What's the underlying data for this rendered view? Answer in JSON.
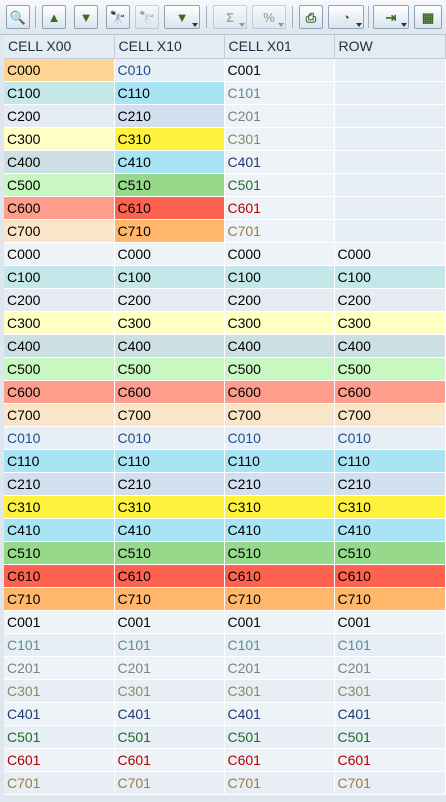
{
  "toolbar": {
    "buttons": [
      {
        "icon": "zoom-details-icon",
        "glyph": "🔍"
      },
      {
        "icon": "sort-ascending-icon",
        "glyph": "▲"
      },
      {
        "icon": "sort-descending-icon",
        "glyph": "▼"
      },
      {
        "icon": "find-icon",
        "glyph": "🔭"
      },
      {
        "icon": "find-next-icon",
        "glyph": "🔭"
      },
      {
        "icon": "filter-icon",
        "glyph": "▼"
      },
      {
        "icon": "sum-icon",
        "glyph": "Σ"
      },
      {
        "icon": "subtotal-icon",
        "glyph": "%"
      },
      {
        "icon": "print-icon",
        "glyph": "⎙"
      },
      {
        "icon": "layout-icon",
        "glyph": "◔"
      },
      {
        "icon": "export-icon",
        "glyph": "⇥"
      },
      {
        "icon": "grid-icon",
        "glyph": "▦"
      }
    ]
  },
  "table": {
    "headers": [
      "CELL X00",
      "CELL X10",
      "CELL X01",
      "ROW"
    ],
    "rows": [
      {
        "cells": [
          {
            "text": "C000",
            "bg": "#fcd592",
            "color": "#000000"
          },
          {
            "text": "C010",
            "bg": "#e8eef5",
            "color": "#1d4f91"
          },
          {
            "text": "C001",
            "bg": "#eef3f8",
            "color": "#000000"
          },
          {
            "text": "",
            "bg": "#e8eef5",
            "color": "#000000"
          }
        ]
      },
      {
        "cells": [
          {
            "text": "C100",
            "bg": "#c4e8ea",
            "color": "#000000"
          },
          {
            "text": "C110",
            "bg": "#a8e4f3",
            "color": "#000000"
          },
          {
            "text": "C101",
            "bg": "#eef3f8",
            "color": "#5a8a9a"
          },
          {
            "text": "",
            "bg": "#e8eef5",
            "color": "#000000"
          }
        ]
      },
      {
        "cells": [
          {
            "text": "C200",
            "bg": "#e4ebf3",
            "color": "#000000"
          },
          {
            "text": "C210",
            "bg": "#d2dfee",
            "color": "#000000"
          },
          {
            "text": "C201",
            "bg": "#eef3f8",
            "color": "#808080"
          },
          {
            "text": "",
            "bg": "#e8eef5",
            "color": "#000000"
          }
        ]
      },
      {
        "cells": [
          {
            "text": "C300",
            "bg": "#ffffc4",
            "color": "#000000"
          },
          {
            "text": "C310",
            "bg": "#fff23d",
            "color": "#000000"
          },
          {
            "text": "C301",
            "bg": "#eef3f8",
            "color": "#8a8a5a"
          },
          {
            "text": "",
            "bg": "#e8eef5",
            "color": "#000000"
          }
        ]
      },
      {
        "cells": [
          {
            "text": "C400",
            "bg": "#cce0e4",
            "color": "#000000"
          },
          {
            "text": "C410",
            "bg": "#a8e4f3",
            "color": "#000000"
          },
          {
            "text": "C401",
            "bg": "#eef3f8",
            "color": "#1f3a6e"
          },
          {
            "text": "",
            "bg": "#e8eef5",
            "color": "#000000"
          }
        ]
      },
      {
        "cells": [
          {
            "text": "C500",
            "bg": "#c8f7c1",
            "color": "#000000"
          },
          {
            "text": "C510",
            "bg": "#96d98b",
            "color": "#000000"
          },
          {
            "text": "C501",
            "bg": "#eef3f8",
            "color": "#1e6b2a"
          },
          {
            "text": "",
            "bg": "#e8eef5",
            "color": "#000000"
          }
        ]
      },
      {
        "cells": [
          {
            "text": "C600",
            "bg": "#fe9d8c",
            "color": "#000000"
          },
          {
            "text": "C610",
            "bg": "#ff6350",
            "color": "#000000"
          },
          {
            "text": "C601",
            "bg": "#eef3f8",
            "color": "#b00000"
          },
          {
            "text": "",
            "bg": "#e8eef5",
            "color": "#000000"
          }
        ]
      },
      {
        "cells": [
          {
            "text": "C700",
            "bg": "#fbe5c9",
            "color": "#000000"
          },
          {
            "text": "C710",
            "bg": "#ffb76c",
            "color": "#000000"
          },
          {
            "text": "C701",
            "bg": "#eef3f8",
            "color": "#a07a3c"
          },
          {
            "text": "",
            "bg": "#e8eef5",
            "color": "#000000"
          }
        ]
      },
      {
        "cells": [
          {
            "text": "C000",
            "bg": "#eef3f8",
            "color": "#000000"
          },
          {
            "text": "C000",
            "bg": "#eef3f8",
            "color": "#000000"
          },
          {
            "text": "C000",
            "bg": "#eef3f8",
            "color": "#000000"
          },
          {
            "text": "C000",
            "bg": "#eef3f8",
            "color": "#000000"
          }
        ]
      },
      {
        "cells": [
          {
            "text": "C100",
            "bg": "#c4e8ea",
            "color": "#000000"
          },
          {
            "text": "C100",
            "bg": "#c4e8ea",
            "color": "#000000"
          },
          {
            "text": "C100",
            "bg": "#c4e8ea",
            "color": "#000000"
          },
          {
            "text": "C100",
            "bg": "#c4e8ea",
            "color": "#000000"
          }
        ]
      },
      {
        "cells": [
          {
            "text": "C200",
            "bg": "#e4ebf3",
            "color": "#000000"
          },
          {
            "text": "C200",
            "bg": "#e4ebf3",
            "color": "#000000"
          },
          {
            "text": "C200",
            "bg": "#e4ebf3",
            "color": "#000000"
          },
          {
            "text": "C200",
            "bg": "#e4ebf3",
            "color": "#000000"
          }
        ]
      },
      {
        "cells": [
          {
            "text": "C300",
            "bg": "#ffffc4",
            "color": "#000000"
          },
          {
            "text": "C300",
            "bg": "#ffffc4",
            "color": "#000000"
          },
          {
            "text": "C300",
            "bg": "#ffffc4",
            "color": "#000000"
          },
          {
            "text": "C300",
            "bg": "#ffffc4",
            "color": "#000000"
          }
        ]
      },
      {
        "cells": [
          {
            "text": "C400",
            "bg": "#cce0e4",
            "color": "#000000"
          },
          {
            "text": "C400",
            "bg": "#cce0e4",
            "color": "#000000"
          },
          {
            "text": "C400",
            "bg": "#cce0e4",
            "color": "#000000"
          },
          {
            "text": "C400",
            "bg": "#cce0e4",
            "color": "#000000"
          }
        ]
      },
      {
        "cells": [
          {
            "text": "C500",
            "bg": "#c8f7c1",
            "color": "#000000"
          },
          {
            "text": "C500",
            "bg": "#c8f7c1",
            "color": "#000000"
          },
          {
            "text": "C500",
            "bg": "#c8f7c1",
            "color": "#000000"
          },
          {
            "text": "C500",
            "bg": "#c8f7c1",
            "color": "#000000"
          }
        ]
      },
      {
        "cells": [
          {
            "text": "C600",
            "bg": "#fe9d8c",
            "color": "#000000"
          },
          {
            "text": "C600",
            "bg": "#fe9d8c",
            "color": "#000000"
          },
          {
            "text": "C600",
            "bg": "#fe9d8c",
            "color": "#000000"
          },
          {
            "text": "C600",
            "bg": "#fe9d8c",
            "color": "#000000"
          }
        ]
      },
      {
        "cells": [
          {
            "text": "C700",
            "bg": "#fbe5c9",
            "color": "#000000"
          },
          {
            "text": "C700",
            "bg": "#fbe5c9",
            "color": "#000000"
          },
          {
            "text": "C700",
            "bg": "#fbe5c9",
            "color": "#000000"
          },
          {
            "text": "C700",
            "bg": "#fbe5c9",
            "color": "#000000"
          }
        ]
      },
      {
        "cells": [
          {
            "text": "C010",
            "bg": "#e8eef5",
            "color": "#1d4f91"
          },
          {
            "text": "C010",
            "bg": "#e8eef5",
            "color": "#1d4f91"
          },
          {
            "text": "C010",
            "bg": "#e8eef5",
            "color": "#1d4f91"
          },
          {
            "text": "C010",
            "bg": "#e8eef5",
            "color": "#1d4f91"
          }
        ]
      },
      {
        "cells": [
          {
            "text": "C110",
            "bg": "#a8e4f3",
            "color": "#000000"
          },
          {
            "text": "C110",
            "bg": "#a8e4f3",
            "color": "#000000"
          },
          {
            "text": "C110",
            "bg": "#a8e4f3",
            "color": "#000000"
          },
          {
            "text": "C110",
            "bg": "#a8e4f3",
            "color": "#000000"
          }
        ]
      },
      {
        "cells": [
          {
            "text": "C210",
            "bg": "#d2dfee",
            "color": "#000000"
          },
          {
            "text": "C210",
            "bg": "#d2dfee",
            "color": "#000000"
          },
          {
            "text": "C210",
            "bg": "#d2dfee",
            "color": "#000000"
          },
          {
            "text": "C210",
            "bg": "#d2dfee",
            "color": "#000000"
          }
        ]
      },
      {
        "cells": [
          {
            "text": "C310",
            "bg": "#fff23d",
            "color": "#000000"
          },
          {
            "text": "C310",
            "bg": "#fff23d",
            "color": "#000000"
          },
          {
            "text": "C310",
            "bg": "#fff23d",
            "color": "#000000"
          },
          {
            "text": "C310",
            "bg": "#fff23d",
            "color": "#000000"
          }
        ]
      },
      {
        "cells": [
          {
            "text": "C410",
            "bg": "#a8e4f3",
            "color": "#000000"
          },
          {
            "text": "C410",
            "bg": "#a8e4f3",
            "color": "#000000"
          },
          {
            "text": "C410",
            "bg": "#a8e4f3",
            "color": "#000000"
          },
          {
            "text": "C410",
            "bg": "#a8e4f3",
            "color": "#000000"
          }
        ]
      },
      {
        "cells": [
          {
            "text": "C510",
            "bg": "#96d98b",
            "color": "#000000"
          },
          {
            "text": "C510",
            "bg": "#96d98b",
            "color": "#000000"
          },
          {
            "text": "C510",
            "bg": "#96d98b",
            "color": "#000000"
          },
          {
            "text": "C510",
            "bg": "#96d98b",
            "color": "#000000"
          }
        ]
      },
      {
        "cells": [
          {
            "text": "C610",
            "bg": "#ff6350",
            "color": "#000000"
          },
          {
            "text": "C610",
            "bg": "#ff6350",
            "color": "#000000"
          },
          {
            "text": "C610",
            "bg": "#ff6350",
            "color": "#000000"
          },
          {
            "text": "C610",
            "bg": "#ff6350",
            "color": "#000000"
          }
        ]
      },
      {
        "cells": [
          {
            "text": "C710",
            "bg": "#ffb76c",
            "color": "#000000"
          },
          {
            "text": "C710",
            "bg": "#ffb76c",
            "color": "#000000"
          },
          {
            "text": "C710",
            "bg": "#ffb76c",
            "color": "#000000"
          },
          {
            "text": "C710",
            "bg": "#ffb76c",
            "color": "#000000"
          }
        ]
      },
      {
        "cells": [
          {
            "text": "C001",
            "bg": "#eef3f8",
            "color": "#000000"
          },
          {
            "text": "C001",
            "bg": "#eef3f8",
            "color": "#000000"
          },
          {
            "text": "C001",
            "bg": "#eef3f8",
            "color": "#000000"
          },
          {
            "text": "C001",
            "bg": "#eef3f8",
            "color": "#000000"
          }
        ]
      },
      {
        "cells": [
          {
            "text": "C101",
            "bg": "#e8eef5",
            "color": "#5a8a9a"
          },
          {
            "text": "C101",
            "bg": "#e8eef5",
            "color": "#5a8a9a"
          },
          {
            "text": "C101",
            "bg": "#e8eef5",
            "color": "#5a8a9a"
          },
          {
            "text": "C101",
            "bg": "#e8eef5",
            "color": "#5a8a9a"
          }
        ]
      },
      {
        "cells": [
          {
            "text": "C201",
            "bg": "#eef3f8",
            "color": "#808080"
          },
          {
            "text": "C201",
            "bg": "#eef3f8",
            "color": "#808080"
          },
          {
            "text": "C201",
            "bg": "#eef3f8",
            "color": "#808080"
          },
          {
            "text": "C201",
            "bg": "#eef3f8",
            "color": "#808080"
          }
        ]
      },
      {
        "cells": [
          {
            "text": "C301",
            "bg": "#e8eef5",
            "color": "#8a8a5a"
          },
          {
            "text": "C301",
            "bg": "#e8eef5",
            "color": "#8a8a5a"
          },
          {
            "text": "C301",
            "bg": "#e8eef5",
            "color": "#8a8a5a"
          },
          {
            "text": "C301",
            "bg": "#e8eef5",
            "color": "#8a8a5a"
          }
        ]
      },
      {
        "cells": [
          {
            "text": "C401",
            "bg": "#eef3f8",
            "color": "#1f3a6e"
          },
          {
            "text": "C401",
            "bg": "#eef3f8",
            "color": "#1f3a6e"
          },
          {
            "text": "C401",
            "bg": "#eef3f8",
            "color": "#1f3a6e"
          },
          {
            "text": "C401",
            "bg": "#eef3f8",
            "color": "#1f3a6e"
          }
        ]
      },
      {
        "cells": [
          {
            "text": "C501",
            "bg": "#e8eef5",
            "color": "#1e6b2a"
          },
          {
            "text": "C501",
            "bg": "#e8eef5",
            "color": "#1e6b2a"
          },
          {
            "text": "C501",
            "bg": "#e8eef5",
            "color": "#1e6b2a"
          },
          {
            "text": "C501",
            "bg": "#e8eef5",
            "color": "#1e6b2a"
          }
        ]
      },
      {
        "cells": [
          {
            "text": "C601",
            "bg": "#eef3f8",
            "color": "#b00000"
          },
          {
            "text": "C601",
            "bg": "#eef3f8",
            "color": "#b00000"
          },
          {
            "text": "C601",
            "bg": "#eef3f8",
            "color": "#b00000"
          },
          {
            "text": "C601",
            "bg": "#eef3f8",
            "color": "#b00000"
          }
        ]
      },
      {
        "cells": [
          {
            "text": "C701",
            "bg": "#e8eef5",
            "color": "#a07a3c"
          },
          {
            "text": "C701",
            "bg": "#e8eef5",
            "color": "#a07a3c"
          },
          {
            "text": "C701",
            "bg": "#e8eef5",
            "color": "#a07a3c"
          },
          {
            "text": "C701",
            "bg": "#e8eef5",
            "color": "#a07a3c"
          }
        ]
      }
    ]
  }
}
